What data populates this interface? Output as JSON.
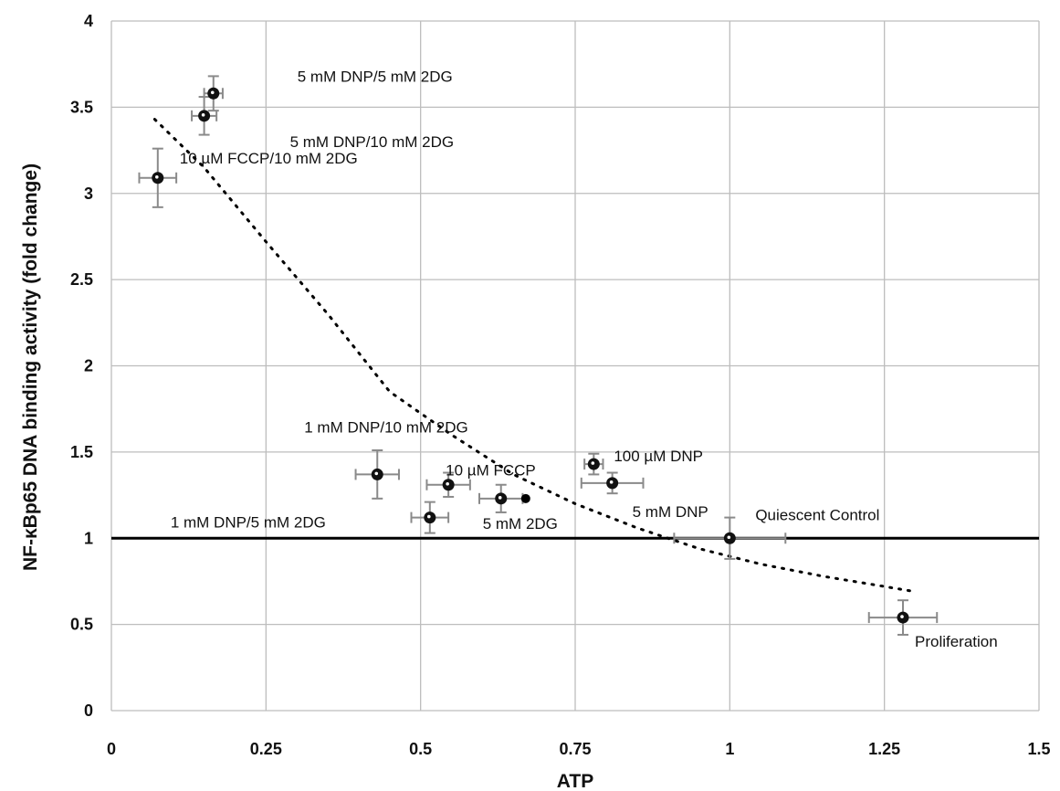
{
  "chart_data": {
    "type": "scatter",
    "title": "",
    "xlabel": "ATP",
    "ylabel": "NF-κBp65 DNA binding activity (fold change)",
    "xlim": [
      0,
      1.5
    ],
    "ylim": [
      0,
      4
    ],
    "xticks": [
      0,
      0.25,
      0.5,
      0.75,
      1,
      1.25,
      1.5
    ],
    "xtick_labels": [
      "0",
      "0.25",
      "0.5",
      "0.75",
      "1",
      "1.25",
      "1.5"
    ],
    "yticks": [
      0,
      0.5,
      1,
      1.5,
      2,
      2.5,
      3,
      3.5,
      4
    ],
    "ytick_labels": [
      "0",
      "0.5",
      "1",
      "1.5",
      "2",
      "2.5",
      "3",
      "3.5",
      "4"
    ],
    "grid": true,
    "reference_line_y": 1,
    "points": [
      {
        "label": "5 mM DNP/5 mM 2DG",
        "x": 0.165,
        "y": 3.58,
        "xerr": 0.015,
        "yerr": 0.1
      },
      {
        "label": "5 mM DNP/10 mM 2DG",
        "x": 0.15,
        "y": 3.45,
        "xerr": 0.02,
        "yerr": 0.11
      },
      {
        "label": "10 µM FCCP/10 mM 2DG",
        "x": 0.075,
        "y": 3.09,
        "xerr": 0.03,
        "yerr": 0.17
      },
      {
        "label": "1 mM DNP/10 mM 2DG",
        "x": 0.43,
        "y": 1.37,
        "xerr": 0.035,
        "yerr": 0.14
      },
      {
        "label": "10 µM FCCP",
        "x": 0.545,
        "y": 1.31,
        "xerr": 0.035,
        "yerr": 0.07
      },
      {
        "label": "1 mM DNP/5 mM 2DG",
        "x": 0.515,
        "y": 1.12,
        "xerr": 0.03,
        "yerr": 0.09
      },
      {
        "label": "5 mM 2DG",
        "x": 0.63,
        "y": 1.23,
        "xerr": 0.035,
        "yerr": 0.08
      },
      {
        "label": "100 µM DNP",
        "x": 0.78,
        "y": 1.43,
        "xerr": 0.015,
        "yerr": 0.06
      },
      {
        "label": "5 mM DNP",
        "x": 0.81,
        "y": 1.32,
        "xerr": 0.05,
        "yerr": 0.06
      },
      {
        "label": "Quiescent Control",
        "x": 1.0,
        "y": 1.0,
        "xerr": 0.09,
        "yerr": 0.12
      },
      {
        "label": "Proliferation",
        "x": 1.28,
        "y": 0.54,
        "xerr": 0.055,
        "yerr": 0.1
      }
    ],
    "extra_points": [
      {
        "x": 0.67,
        "y": 1.23
      }
    ],
    "trendline": {
      "style": "dotted",
      "points": [
        {
          "x": 0.07,
          "y": 3.43
        },
        {
          "x": 0.15,
          "y": 3.15
        },
        {
          "x": 0.25,
          "y": 2.72
        },
        {
          "x": 0.35,
          "y": 2.3
        },
        {
          "x": 0.45,
          "y": 1.85
        },
        {
          "x": 0.55,
          "y": 1.6
        },
        {
          "x": 0.65,
          "y": 1.37
        },
        {
          "x": 0.75,
          "y": 1.2
        },
        {
          "x": 0.85,
          "y": 1.06
        },
        {
          "x": 0.95,
          "y": 0.94
        },
        {
          "x": 1.05,
          "y": 0.85
        },
        {
          "x": 1.15,
          "y": 0.78
        },
        {
          "x": 1.25,
          "y": 0.72
        },
        {
          "x": 1.3,
          "y": 0.69
        }
      ]
    }
  }
}
